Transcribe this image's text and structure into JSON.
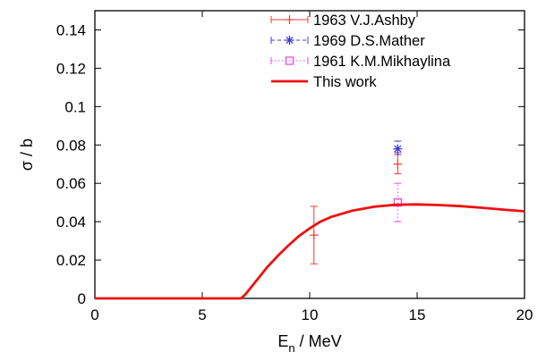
{
  "chart_data": {
    "type": "scatter",
    "title": "",
    "xlabel": {
      "main": "E",
      "sub": "n",
      "rest": " / MeV"
    },
    "ylabel": "σ / b",
    "xlim": [
      0,
      20
    ],
    "ylim": [
      0,
      0.15
    ],
    "x_ticks": [
      0,
      5,
      10,
      15,
      20
    ],
    "y_ticks": [
      0,
      0.02,
      0.04,
      0.06,
      0.08,
      0.1,
      0.12,
      0.14
    ],
    "x_tick_labels": [
      "0",
      "5",
      "10",
      "15",
      "20"
    ],
    "y_tick_labels": [
      "0",
      "0.02",
      "0.04",
      "0.06",
      "0.08",
      "0.1",
      "0.12",
      "0.14"
    ],
    "grid": false,
    "legend_position": "top-right",
    "series": [
      {
        "name": "1963 V.J.Ashby",
        "kind": "errorbar",
        "marker": "plus",
        "color": "#e8413c",
        "line_style": "solid",
        "points": [
          {
            "x": 10.2,
            "y": 0.033,
            "ylow": 0.018,
            "yhigh": 0.048
          },
          {
            "x": 14.1,
            "y": 0.07,
            "ylow": 0.065,
            "yhigh": 0.076
          }
        ]
      },
      {
        "name": "1969 D.S.Mather",
        "kind": "errorbar",
        "marker": "star",
        "color": "#3b3bd9",
        "line_style": "dashed",
        "points": [
          {
            "x": 14.1,
            "y": 0.078,
            "ylow": 0.075,
            "yhigh": 0.082
          }
        ]
      },
      {
        "name": "1961 K.M.Mikhaylina",
        "kind": "errorbar",
        "marker": "square",
        "color": "#e84be8",
        "line_style": "dotted",
        "points": [
          {
            "x": 14.1,
            "y": 0.05,
            "ylow": 0.04,
            "yhigh": 0.06
          }
        ]
      },
      {
        "name": "This work",
        "kind": "line",
        "color": "#ee1111",
        "x": [
          0,
          6.8,
          7.0,
          7.5,
          8.0,
          8.5,
          9.0,
          9.5,
          10.0,
          10.5,
          11.0,
          12.0,
          13.0,
          14.0,
          15.0,
          16.0,
          17.0,
          18.0,
          19.0,
          20.0
        ],
        "y": [
          0.0,
          0.0,
          0.002,
          0.009,
          0.016,
          0.022,
          0.0275,
          0.0325,
          0.0365,
          0.04,
          0.0425,
          0.0458,
          0.0478,
          0.0488,
          0.049,
          0.0487,
          0.0481,
          0.0473,
          0.0463,
          0.0454
        ]
      }
    ]
  }
}
